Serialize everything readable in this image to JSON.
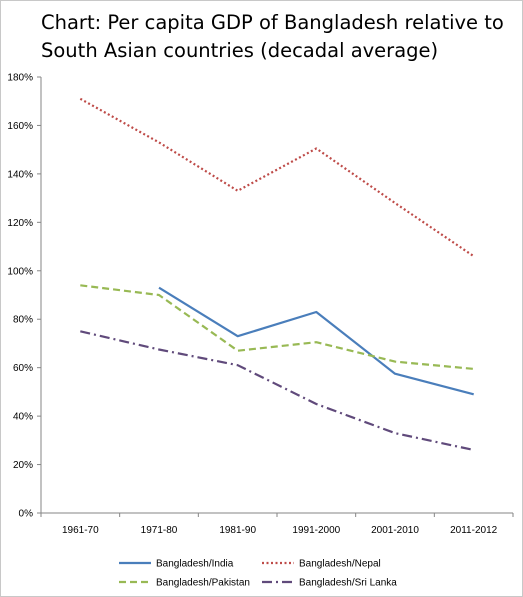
{
  "chart_data": {
    "type": "line",
    "title": "Chart: Per capita GDP of Bangladesh relative to\nSouth Asian countries (decadal average)",
    "xlabel": "",
    "ylabel": "",
    "categories": [
      "1961-70",
      "1971-80",
      "1981-90",
      "1991-2000",
      "2001-2010",
      "2011-2012"
    ],
    "ylim": [
      0,
      180
    ],
    "yticks": [
      "0%",
      "20%",
      "40%",
      "60%",
      "80%",
      "100%",
      "120%",
      "140%",
      "160%",
      "180%"
    ],
    "grid": false,
    "legend_position": "bottom",
    "series": [
      {
        "name": "Bangladesh/India",
        "values": [
          null,
          93,
          73,
          83,
          57.5,
          49
        ],
        "color": "#4a7ebb",
        "dash": "solid"
      },
      {
        "name": "Bangladesh/Nepal",
        "values": [
          171,
          153,
          133,
          150.5,
          128,
          106
        ],
        "color": "#be4b48",
        "dash": "dotted"
      },
      {
        "name": "Bangladesh/Pakistan",
        "values": [
          94,
          90,
          67,
          70.5,
          62.5,
          59.5
        ],
        "color": "#98b954",
        "dash": "dashed"
      },
      {
        "name": "Bangladesh/Sri Lanka",
        "values": [
          75,
          67.5,
          61,
          45,
          33,
          26
        ],
        "color": "#604a7b",
        "dash": "dashdot"
      }
    ]
  }
}
